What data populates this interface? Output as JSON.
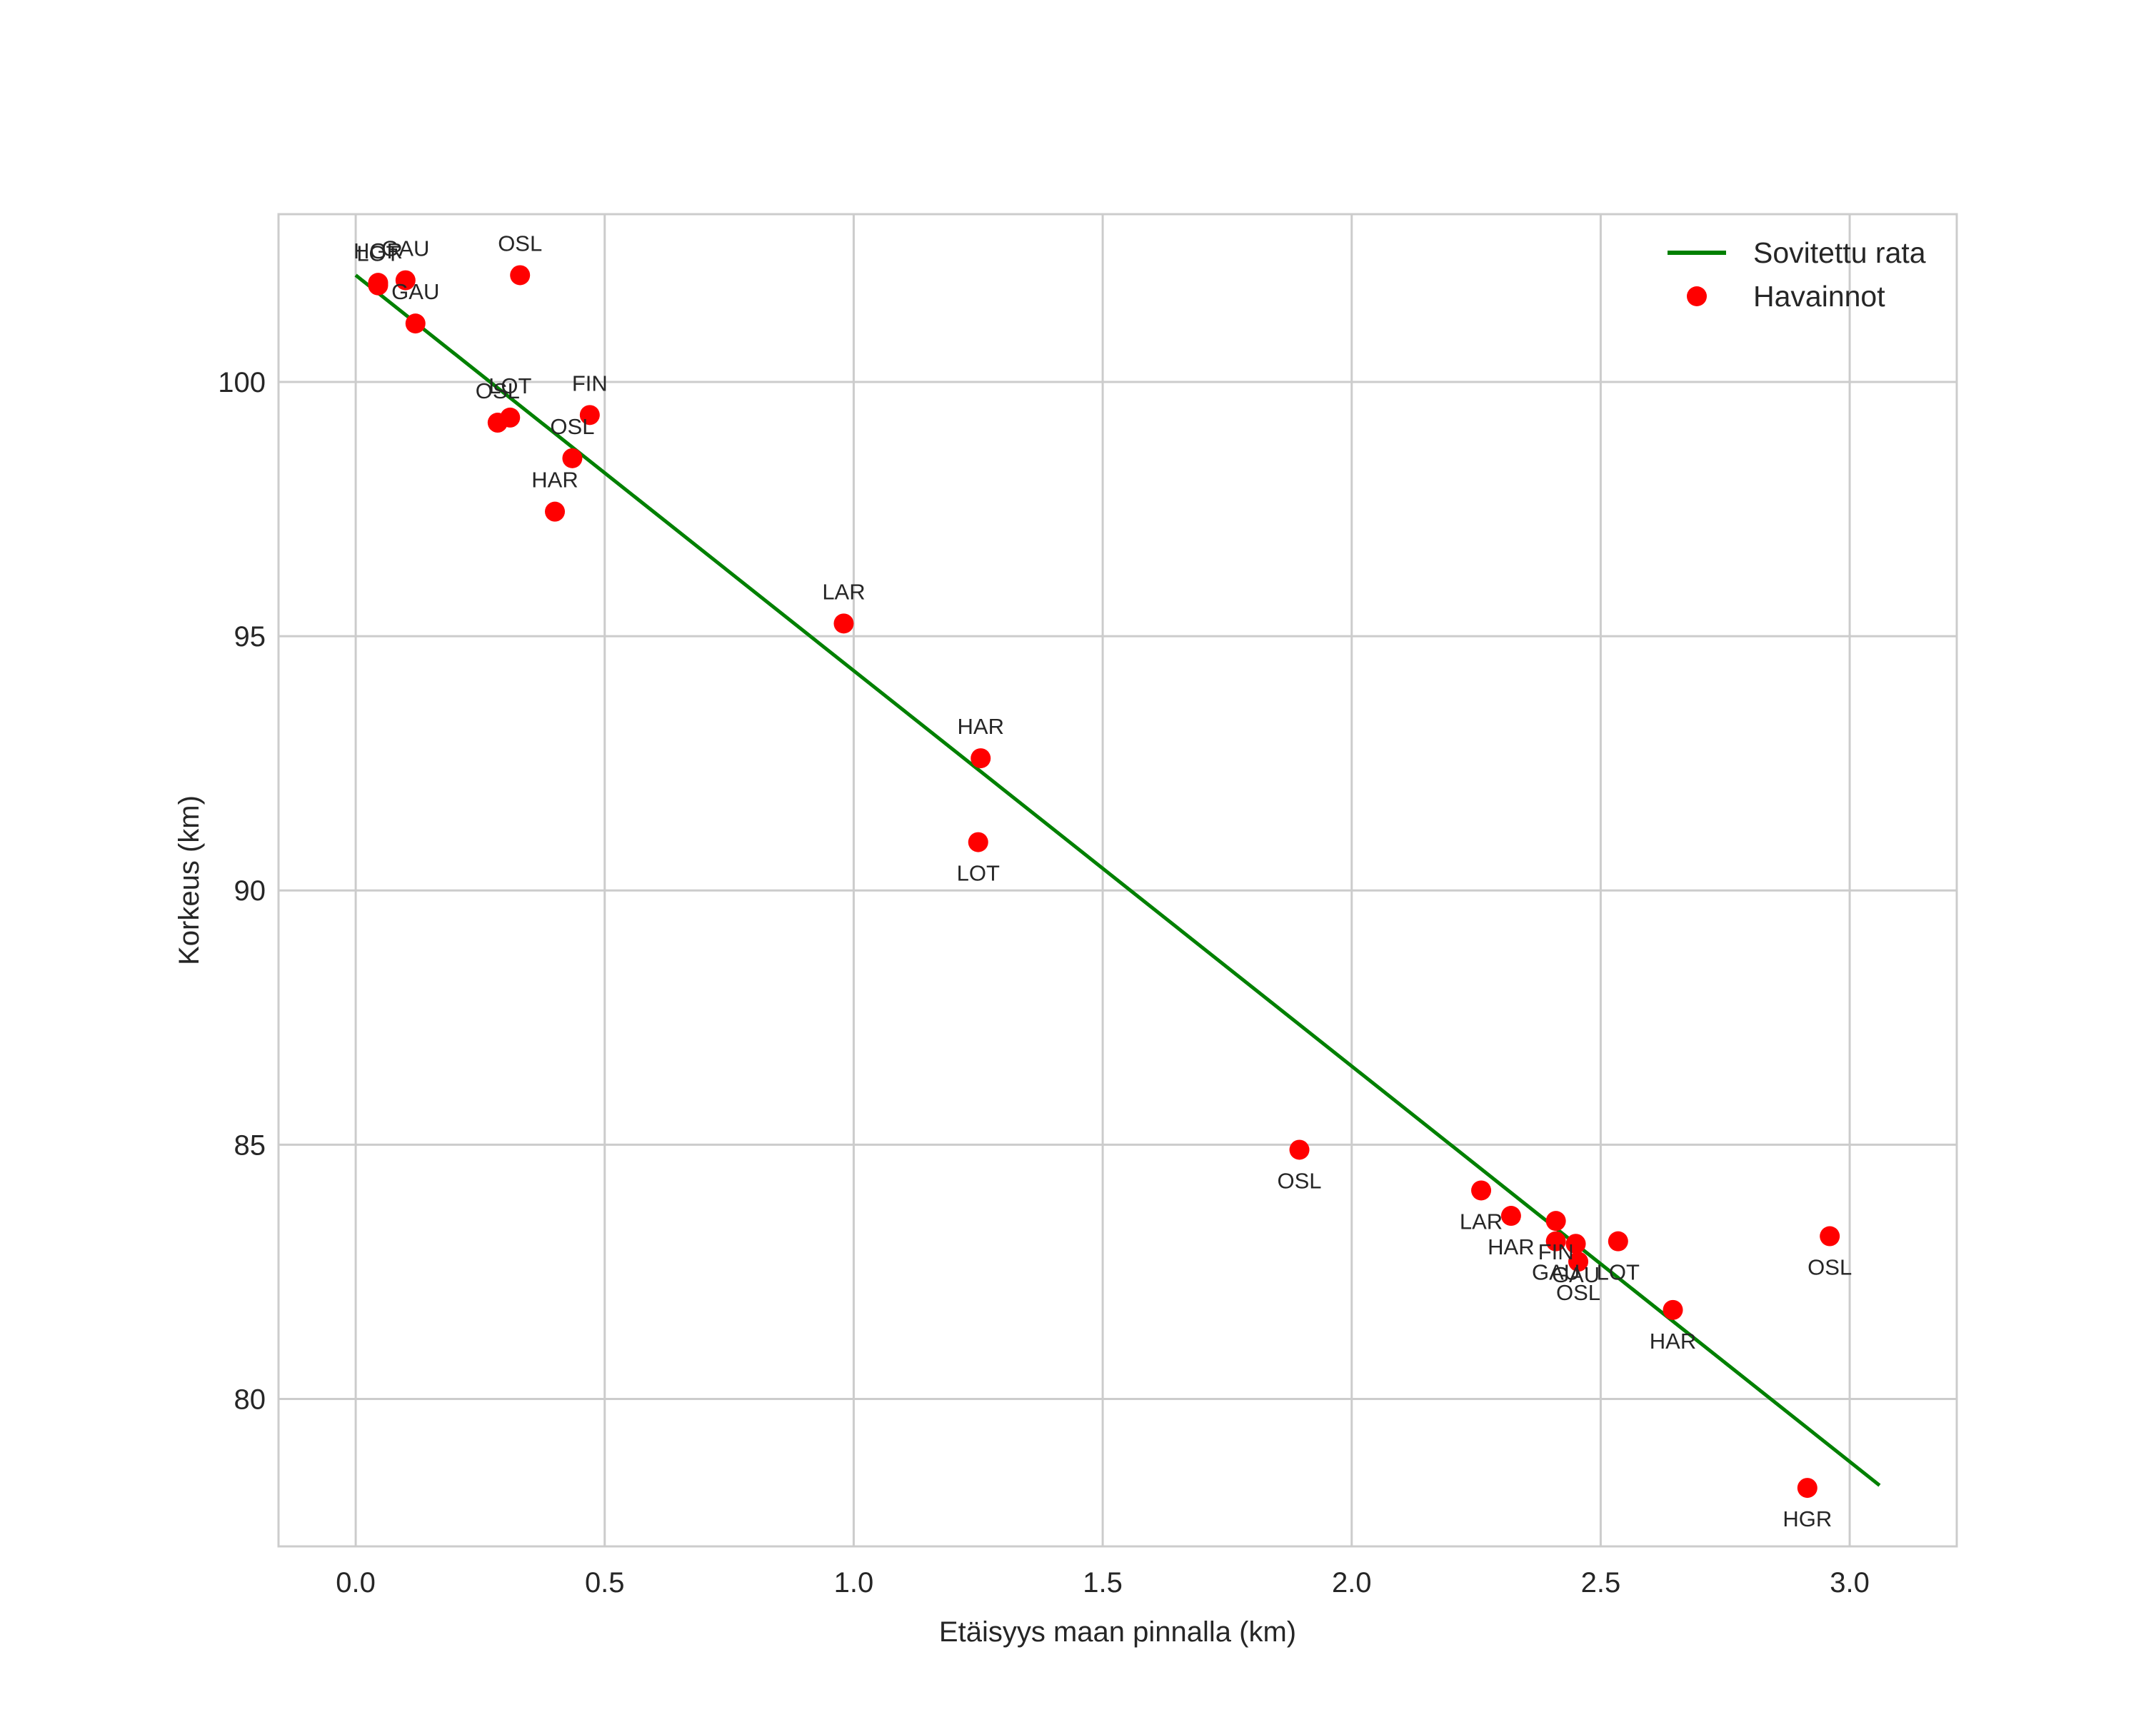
{
  "chart_data": {
    "type": "scatter",
    "title": "",
    "xlabel": "Etäisyys maan pinnalla (km)",
    "ylabel": "Korkeus (km)",
    "xlim": [
      -0.155,
      3.215
    ],
    "ylim": [
      77.1,
      103.3
    ],
    "xticks": [
      0.0,
      0.5,
      1.0,
      1.5,
      2.0,
      2.5,
      3.0
    ],
    "xtick_labels": [
      "0.0",
      "0.5",
      "1.0",
      "1.5",
      "2.0",
      "2.5",
      "3.0"
    ],
    "yticks": [
      80,
      85,
      90,
      95,
      100
    ],
    "ytick_labels": [
      "80",
      "85",
      "90",
      "95",
      "100"
    ],
    "grid": true,
    "legend_position": "top-right",
    "series": [
      {
        "name": "Sovitettu rata",
        "kind": "line",
        "color": "#008000",
        "x": [
          0.0,
          3.06
        ],
        "y": [
          102.1,
          78.3
        ]
      },
      {
        "name": "Havainnot",
        "kind": "scatter",
        "color": "#ff0000",
        "points": [
          {
            "x": 0.045,
            "y": 101.95,
            "label": "HGR",
            "label_pos": "above"
          },
          {
            "x": 0.045,
            "y": 101.9,
            "label": "LOT",
            "label_pos": "above"
          },
          {
            "x": 0.1,
            "y": 102.0,
            "label": "GAU",
            "label_pos": "above"
          },
          {
            "x": 0.12,
            "y": 101.15,
            "label": "GAU",
            "label_pos": "above"
          },
          {
            "x": 0.33,
            "y": 102.1,
            "label": "OSL",
            "label_pos": "above"
          },
          {
            "x": 0.285,
            "y": 99.2,
            "label": "OSL",
            "label_pos": "above"
          },
          {
            "x": 0.31,
            "y": 99.3,
            "label": "LOT",
            "label_pos": "above"
          },
          {
            "x": 0.47,
            "y": 99.35,
            "label": "FIN",
            "label_pos": "above"
          },
          {
            "x": 0.435,
            "y": 98.5,
            "label": "OSL",
            "label_pos": "above"
          },
          {
            "x": 0.4,
            "y": 97.45,
            "label": "HAR",
            "label_pos": "above"
          },
          {
            "x": 0.98,
            "y": 95.25,
            "label": "LAR",
            "label_pos": "above"
          },
          {
            "x": 1.255,
            "y": 92.6,
            "label": "HAR",
            "label_pos": "above"
          },
          {
            "x": 1.25,
            "y": 90.95,
            "label": "LOT",
            "label_pos": "below"
          },
          {
            "x": 1.895,
            "y": 84.9,
            "label": "OSL",
            "label_pos": "below"
          },
          {
            "x": 2.26,
            "y": 84.1,
            "label": "LAR",
            "label_pos": "below"
          },
          {
            "x": 2.32,
            "y": 83.6,
            "label": "HAR",
            "label_pos": "below"
          },
          {
            "x": 2.41,
            "y": 83.5,
            "label": "FIN",
            "label_pos": "below"
          },
          {
            "x": 2.41,
            "y": 83.1,
            "label": "GAU",
            "label_pos": "below"
          },
          {
            "x": 2.45,
            "y": 83.05,
            "label": "GAU",
            "label_pos": "below"
          },
          {
            "x": 2.455,
            "y": 82.7,
            "label": "OSL",
            "label_pos": "below"
          },
          {
            "x": 2.535,
            "y": 83.1,
            "label": "LOT",
            "label_pos": "below"
          },
          {
            "x": 2.645,
            "y": 81.75,
            "label": "HAR",
            "label_pos": "below"
          },
          {
            "x": 2.915,
            "y": 78.25,
            "label": "HGR",
            "label_pos": "below"
          },
          {
            "x": 2.96,
            "y": 83.2,
            "label": "OSL",
            "label_pos": "below"
          }
        ]
      }
    ]
  }
}
